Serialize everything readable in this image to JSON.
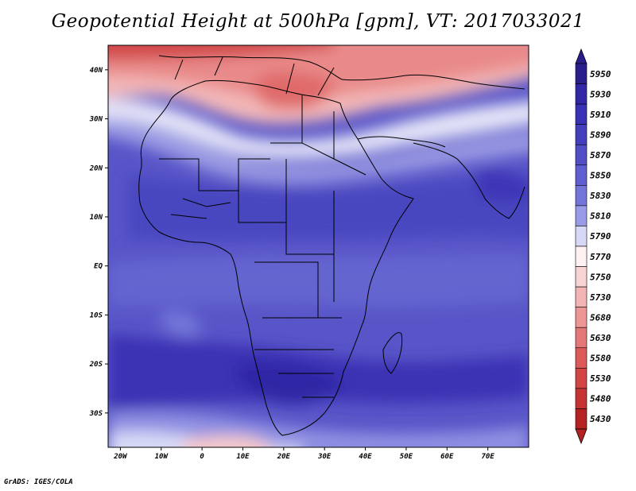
{
  "title": "Geopotential Height at 500hPa [gpm], VT: 2017033021",
  "credit": "GrADS: IGES/COLA",
  "map": {
    "lat_range": [
      -37,
      45
    ],
    "lon_range": [
      -23,
      80
    ],
    "lat_labels": [
      {
        "value": 40,
        "text": "40N"
      },
      {
        "value": 30,
        "text": "30N"
      },
      {
        "value": 20,
        "text": "20N"
      },
      {
        "value": 10,
        "text": "10N"
      },
      {
        "value": 0,
        "text": "EQ"
      },
      {
        "value": -10,
        "text": "10S"
      },
      {
        "value": -20,
        "text": "20S"
      },
      {
        "value": -30,
        "text": "30S"
      }
    ],
    "lon_labels": [
      {
        "value": -20,
        "text": "20W"
      },
      {
        "value": -10,
        "text": "10W"
      },
      {
        "value": 0,
        "text": "0"
      },
      {
        "value": 10,
        "text": "10E"
      },
      {
        "value": 20,
        "text": "20E"
      },
      {
        "value": 30,
        "text": "30E"
      },
      {
        "value": 40,
        "text": "40E"
      },
      {
        "value": 50,
        "text": "50E"
      },
      {
        "value": 60,
        "text": "60E"
      },
      {
        "value": 70,
        "text": "70E"
      }
    ]
  },
  "colorbar": {
    "levels": [
      {
        "label": "5950",
        "color": "#2a1d8c"
      },
      {
        "label": "5930",
        "color": "#3227a6"
      },
      {
        "label": "5910",
        "color": "#3a32b4"
      },
      {
        "label": "5890",
        "color": "#4440bd"
      },
      {
        "label": "5870",
        "color": "#514ec6"
      },
      {
        "label": "5850",
        "color": "#605fcf"
      },
      {
        "label": "5830",
        "color": "#7475d9"
      },
      {
        "label": "5810",
        "color": "#9a9be6"
      },
      {
        "label": "5790",
        "color": "#d7d8f5"
      },
      {
        "label": "5770",
        "color": "#fdf1f1"
      },
      {
        "label": "5750",
        "color": "#f8d3d3"
      },
      {
        "label": "5730",
        "color": "#f3b4b4"
      },
      {
        "label": "5680",
        "color": "#ec9696"
      },
      {
        "label": "5630",
        "color": "#e47878"
      },
      {
        "label": "5580",
        "color": "#dc5a5a"
      },
      {
        "label": "5530",
        "color": "#d24545"
      },
      {
        "label": "5480",
        "color": "#c53333"
      },
      {
        "label": "5430",
        "color": "#b42222"
      }
    ]
  }
}
